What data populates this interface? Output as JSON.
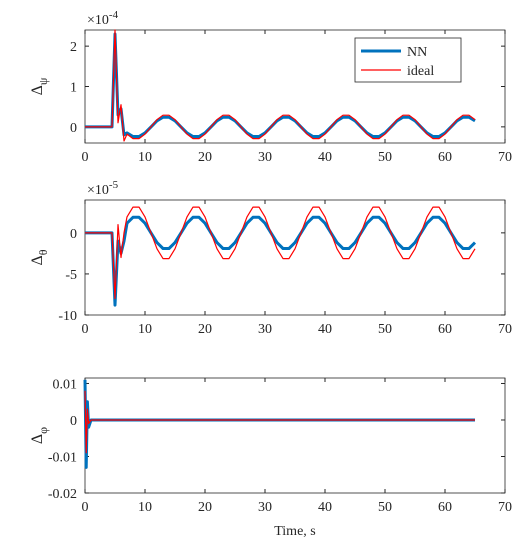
{
  "chart_data": [
    {
      "type": "line",
      "ylabel": "Δ",
      "ylabel_sub": "ψ",
      "y_multiplier": "×10",
      "y_exponent": "-4",
      "x": [
        0,
        4.5,
        5,
        5.5,
        6,
        6.5,
        7,
        8,
        9,
        10,
        11,
        12,
        13,
        14,
        15,
        16,
        17,
        18,
        19,
        20,
        21,
        22,
        23,
        24,
        25,
        26,
        27,
        28,
        29,
        30,
        31,
        32,
        33,
        34,
        35,
        36,
        37,
        38,
        39,
        40,
        41,
        42,
        43,
        44,
        45,
        46,
        47,
        48,
        49,
        50,
        51,
        52,
        53,
        54,
        55,
        56,
        57,
        58,
        59,
        60,
        61,
        62,
        63,
        64,
        65
      ],
      "series": [
        {
          "name": "NN",
          "color": "#0072bd",
          "values": [
            0,
            0,
            2.3,
            0.3,
            0.45,
            -0.2,
            -0.15,
            -0.24,
            -0.24,
            -0.15,
            0,
            0.15,
            0.24,
            0.24,
            0.15,
            0,
            -0.15,
            -0.24,
            -0.24,
            -0.15,
            0,
            0.15,
            0.24,
            0.24,
            0.15,
            0,
            -0.15,
            -0.24,
            -0.24,
            -0.15,
            0,
            0.15,
            0.24,
            0.24,
            0.15,
            0,
            -0.15,
            -0.24,
            -0.24,
            -0.15,
            0,
            0.15,
            0.24,
            0.24,
            0.15,
            0,
            -0.15,
            -0.24,
            -0.24,
            -0.15,
            0,
            0.15,
            0.24,
            0.24,
            0.15,
            0,
            -0.15,
            -0.24,
            -0.24,
            -0.15,
            0,
            0.15,
            0.24,
            0.24,
            0.15
          ]
        },
        {
          "name": "ideal",
          "color": "#ff0000",
          "values": [
            0,
            0,
            2.4,
            0.1,
            0.55,
            -0.35,
            -0.18,
            -0.29,
            -0.29,
            -0.18,
            0,
            0.18,
            0.29,
            0.29,
            0.18,
            0,
            -0.18,
            -0.29,
            -0.29,
            -0.18,
            0,
            0.18,
            0.29,
            0.29,
            0.18,
            0,
            -0.18,
            -0.29,
            -0.29,
            -0.18,
            0,
            0.18,
            0.29,
            0.29,
            0.18,
            0,
            -0.18,
            -0.29,
            -0.29,
            -0.18,
            0,
            0.18,
            0.29,
            0.29,
            0.18,
            0,
            -0.18,
            -0.29,
            -0.29,
            -0.18,
            0,
            0.18,
            0.29,
            0.29,
            0.18,
            0,
            -0.18,
            -0.29,
            -0.29,
            -0.18,
            0,
            0.18,
            0.29,
            0.29,
            0.18
          ]
        }
      ],
      "xlim": [
        0,
        70
      ],
      "xticks": [
        0,
        10,
        20,
        30,
        40,
        50,
        60,
        70
      ],
      "ylim": [
        -0.4,
        2.4
      ],
      "yticks": [
        0,
        1,
        2
      ],
      "legend": "upper right"
    },
    {
      "type": "line",
      "ylabel": "Δ",
      "ylabel_sub": "θ",
      "y_multiplier": "×10",
      "y_exponent": "-5",
      "x": [
        0,
        4.5,
        5,
        5.5,
        6,
        6.5,
        7,
        8,
        9,
        10,
        11,
        12,
        13,
        14,
        15,
        16,
        17,
        18,
        19,
        20,
        21,
        22,
        23,
        24,
        25,
        26,
        27,
        28,
        29,
        30,
        31,
        32,
        33,
        34,
        35,
        36,
        37,
        38,
        39,
        40,
        41,
        42,
        43,
        44,
        45,
        46,
        47,
        48,
        49,
        50,
        51,
        52,
        53,
        54,
        55,
        56,
        57,
        58,
        59,
        60,
        61,
        62,
        63,
        64,
        65
      ],
      "series": [
        {
          "name": "NN",
          "color": "#0072bd",
          "values": [
            0,
            0,
            -8.8,
            -1,
            -2.5,
            -1,
            1.18,
            1.9,
            1.9,
            1.18,
            0,
            -1.18,
            -1.9,
            -1.9,
            -1.18,
            0,
            1.18,
            1.9,
            1.9,
            1.18,
            0,
            -1.18,
            -1.9,
            -1.9,
            -1.18,
            0,
            1.18,
            1.9,
            1.9,
            1.18,
            0,
            -1.18,
            -1.9,
            -1.9,
            -1.18,
            0,
            1.18,
            1.9,
            1.9,
            1.18,
            0,
            -1.18,
            -1.9,
            -1.9,
            -1.18,
            0,
            1.18,
            1.9,
            1.9,
            1.18,
            0,
            -1.18,
            -1.9,
            -1.9,
            -1.18,
            0,
            1.18,
            1.9,
            1.9,
            1.18,
            0,
            -1.18,
            -1.9,
            -1.9,
            -1.18
          ]
        },
        {
          "name": "ideal",
          "color": "#ff0000",
          "values": [
            0,
            0,
            -8,
            1,
            -3,
            0,
            1.94,
            3.14,
            3.14,
            1.94,
            0,
            -1.94,
            -3.14,
            -3.14,
            -1.94,
            0,
            1.94,
            3.14,
            3.14,
            1.94,
            0,
            -1.94,
            -3.14,
            -3.14,
            -1.94,
            0,
            1.94,
            3.14,
            3.14,
            1.94,
            0,
            -1.94,
            -3.14,
            -3.14,
            -1.94,
            0,
            1.94,
            3.14,
            3.14,
            1.94,
            0,
            -1.94,
            -3.14,
            -3.14,
            -1.94,
            0,
            1.94,
            3.14,
            3.14,
            1.94,
            0,
            -1.94,
            -3.14,
            -3.14,
            -1.94,
            0,
            1.94,
            3.14,
            3.14,
            1.94,
            0,
            -1.94,
            -3.14,
            -3.14,
            -1.94
          ]
        }
      ],
      "xlim": [
        0,
        70
      ],
      "xticks": [
        0,
        10,
        20,
        30,
        40,
        50,
        60,
        70
      ],
      "ylim": [
        -10,
        4
      ],
      "yticks": [
        -10,
        -5,
        0
      ]
    },
    {
      "type": "line",
      "ylabel": "Δ",
      "ylabel_sub": "φ",
      "xlabel": "Time, s",
      "x": [
        0,
        0.2,
        0.4,
        0.6,
        1,
        65
      ],
      "series": [
        {
          "name": "NN",
          "color": "#0072bd",
          "values": [
            0.011,
            -0.013,
            0.005,
            -0.002,
            0,
            0
          ]
        },
        {
          "name": "ideal",
          "color": "#ff0000",
          "values": [
            0.008,
            -0.009,
            0.003,
            -0.001,
            0,
            0
          ]
        }
      ],
      "xlim": [
        0,
        70
      ],
      "xticks": [
        0,
        10,
        20,
        30,
        40,
        50,
        60,
        70
      ],
      "ylim": [
        -0.02,
        0.0115
      ],
      "yticks": [
        -0.02,
        -0.01,
        0,
        0.01
      ]
    }
  ]
}
